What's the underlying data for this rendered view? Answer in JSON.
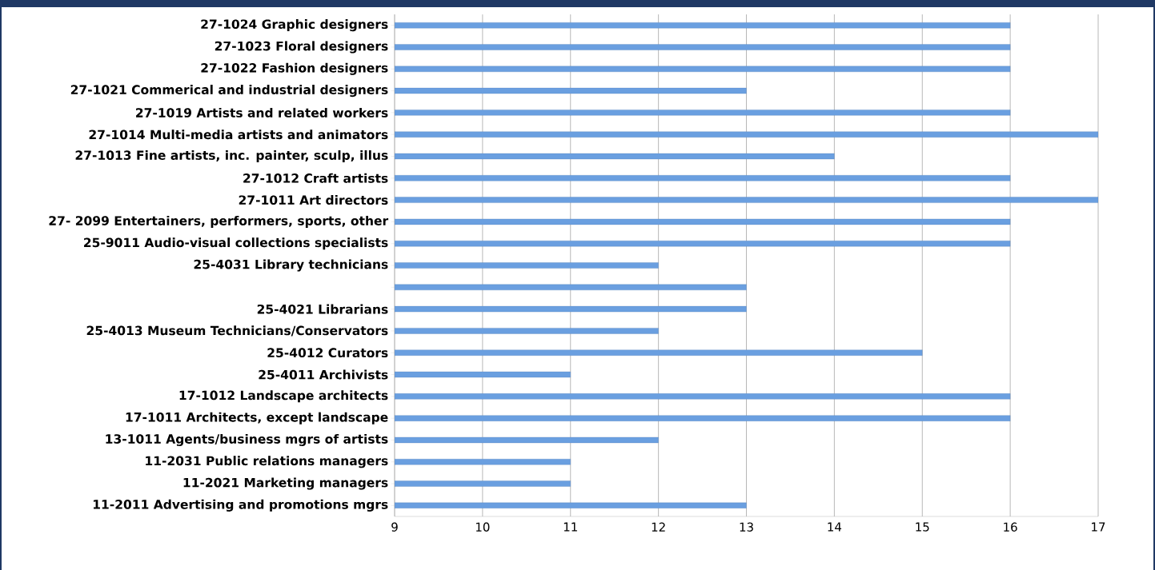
{
  "chart_data": {
    "type": "bar",
    "orientation": "horizontal",
    "color": "#6a9fe0",
    "categories": [
      "27-1024 Graphic designers",
      "27-1023 Floral designers",
      "27-1022 Fashion designers",
      "27-1021 Commerical and industrial designers",
      "27-1019 Artists and related workers",
      "27-1014 Multi-media artists and animators",
      "27-1013 Fine artists, inc. painter, sculp, illus",
      "27-1012 Craft artists",
      "27-1011 Art directors",
      "27- 2099 Entertainers, performers, sports, other",
      "25-9011 Audio-visual collections specialists",
      "25-4031 Library technicians",
      null,
      "25-4021 Librarians",
      "25-4013 Museum Technicians/Conservators",
      "25-4012 Curators",
      "25-4011 Archivists",
      "17-1012 Landscape architects",
      "17-1011 Architects, except landscape",
      "13-1011 Agents/business mgrs of artists",
      "11-2031 Public relations managers",
      "11-2021 Marketing managers",
      "11-2011 Advertising and promotions mgrs"
    ],
    "values": [
      16,
      16,
      16,
      13,
      16,
      17,
      14,
      16,
      17,
      16,
      16,
      12,
      13,
      13,
      12,
      15,
      11,
      16,
      16,
      12,
      11,
      11,
      13
    ],
    "xlim": [
      9,
      17
    ],
    "xticks": [
      9,
      10,
      11,
      12,
      13,
      14,
      15,
      16,
      17
    ],
    "grid": "x"
  }
}
